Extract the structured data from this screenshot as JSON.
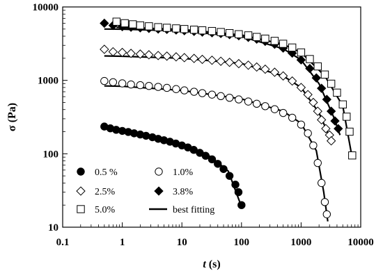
{
  "chart_data": {
    "type": "scatter",
    "xlabel_italic": "t",
    "xlabel_unit": " (s)",
    "ylabel": "σ (Pa)",
    "xscale": "log",
    "yscale": "log",
    "xlim": [
      0.1,
      10000
    ],
    "ylim": [
      10,
      10000
    ],
    "grid": false,
    "legend_position": "bottom-left inside plot",
    "x_ticks": [
      "0.1",
      "1",
      "10",
      "100",
      "1000",
      "10000"
    ],
    "y_ticks": [
      "10",
      "100",
      "1000",
      "10000"
    ],
    "series": [
      {
        "name": "0.5 %",
        "marker": "filled-circle",
        "points": [
          [
            0.5,
            235
          ],
          [
            0.63,
            222
          ],
          [
            0.79,
            212
          ],
          [
            1.0,
            205
          ],
          [
            1.26,
            198
          ],
          [
            1.58,
            190
          ],
          [
            2.0,
            183
          ],
          [
            2.5,
            176
          ],
          [
            3.2,
            168
          ],
          [
            4.0,
            160
          ],
          [
            5.0,
            153
          ],
          [
            6.3,
            146
          ],
          [
            7.9,
            138
          ],
          [
            10,
            130
          ],
          [
            12.6,
            122
          ],
          [
            15.8,
            113
          ],
          [
            20,
            103
          ],
          [
            25,
            94
          ],
          [
            32,
            84
          ],
          [
            40,
            73
          ],
          [
            50,
            62
          ],
          [
            63,
            50
          ],
          [
            79,
            38
          ],
          [
            89,
            30
          ],
          [
            100,
            20
          ]
        ],
        "fit": [
          [
            0.5,
            232
          ],
          [
            1,
            205
          ],
          [
            3,
            172
          ],
          [
            10,
            132
          ],
          [
            30,
            92
          ],
          [
            60,
            58
          ],
          [
            100,
            19
          ]
        ]
      },
      {
        "name": "1.0%",
        "marker": "open-circle",
        "points": [
          [
            0.5,
            980
          ],
          [
            0.7,
            945
          ],
          [
            1.0,
            910
          ],
          [
            1.4,
            880
          ],
          [
            2.0,
            860
          ],
          [
            2.8,
            840
          ],
          [
            4.0,
            815
          ],
          [
            5.6,
            790
          ],
          [
            8,
            760
          ],
          [
            11,
            730
          ],
          [
            16,
            700
          ],
          [
            22,
            670
          ],
          [
            32,
            640
          ],
          [
            45,
            610
          ],
          [
            63,
            580
          ],
          [
            90,
            550
          ],
          [
            130,
            515
          ],
          [
            180,
            480
          ],
          [
            250,
            445
          ],
          [
            360,
            405
          ],
          [
            500,
            360
          ],
          [
            710,
            310
          ],
          [
            1000,
            250
          ],
          [
            1300,
            190
          ],
          [
            1600,
            130
          ],
          [
            1900,
            75
          ],
          [
            2200,
            40
          ],
          [
            2500,
            22
          ],
          [
            2700,
            15
          ]
        ],
        "fit": [
          [
            0.5,
            840
          ],
          [
            1,
            830
          ],
          [
            10,
            730
          ],
          [
            100,
            560
          ],
          [
            500,
            380
          ],
          [
            1000,
            260
          ],
          [
            1800,
            110
          ],
          [
            2400,
            30
          ],
          [
            2800,
            12
          ]
        ]
      },
      {
        "name": "2.5%",
        "marker": "open-diamond",
        "points": [
          [
            0.5,
            2650
          ],
          [
            0.7,
            2450
          ],
          [
            1.0,
            2400
          ],
          [
            1.4,
            2330
          ],
          [
            2.0,
            2280
          ],
          [
            2.8,
            2230
          ],
          [
            4.0,
            2180
          ],
          [
            5.6,
            2140
          ],
          [
            8,
            2090
          ],
          [
            11,
            2040
          ],
          [
            16,
            1990
          ],
          [
            22,
            1930
          ],
          [
            32,
            1880
          ],
          [
            45,
            1820
          ],
          [
            63,
            1760
          ],
          [
            90,
            1690
          ],
          [
            130,
            1610
          ],
          [
            180,
            1520
          ],
          [
            250,
            1420
          ],
          [
            360,
            1290
          ],
          [
            500,
            1150
          ],
          [
            710,
            980
          ],
          [
            1000,
            800
          ],
          [
            1300,
            640
          ],
          [
            1600,
            500
          ],
          [
            1900,
            380
          ],
          [
            2200,
            290
          ],
          [
            2600,
            220
          ],
          [
            3000,
            180
          ],
          [
            3200,
            150
          ]
        ],
        "fit": [
          [
            0.5,
            2150
          ],
          [
            1,
            2130
          ],
          [
            10,
            2000
          ],
          [
            100,
            1700
          ],
          [
            500,
            1150
          ],
          [
            1000,
            800
          ],
          [
            2000,
            360
          ],
          [
            3000,
            170
          ],
          [
            3400,
            140
          ]
        ]
      },
      {
        "name": "3.8%",
        "marker": "filled-diamond",
        "points": [
          [
            0.5,
            6000
          ],
          [
            0.7,
            5600
          ],
          [
            1.0,
            5400
          ],
          [
            1.4,
            5300
          ],
          [
            2.0,
            5200
          ],
          [
            2.8,
            5100
          ],
          [
            4.0,
            5000
          ],
          [
            5.6,
            4950
          ],
          [
            8,
            4850
          ],
          [
            11,
            4750
          ],
          [
            16,
            4650
          ],
          [
            22,
            4550
          ],
          [
            32,
            4450
          ],
          [
            45,
            4350
          ],
          [
            63,
            4200
          ],
          [
            90,
            4050
          ],
          [
            130,
            3850
          ],
          [
            180,
            3650
          ],
          [
            250,
            3400
          ],
          [
            360,
            3100
          ],
          [
            500,
            2750
          ],
          [
            710,
            2350
          ],
          [
            1000,
            1900
          ],
          [
            1400,
            1450
          ],
          [
            1800,
            1080
          ],
          [
            2200,
            780
          ],
          [
            2700,
            550
          ],
          [
            3200,
            380
          ],
          [
            3700,
            280
          ],
          [
            4200,
            220
          ]
        ],
        "fit": [
          [
            0.5,
            5000
          ],
          [
            1,
            4980
          ],
          [
            10,
            4700
          ],
          [
            100,
            3950
          ],
          [
            500,
            2700
          ],
          [
            1000,
            1900
          ],
          [
            2000,
            900
          ],
          [
            3500,
            320
          ],
          [
            4500,
            180
          ]
        ]
      },
      {
        "name": "5.0%",
        "marker": "open-square",
        "points": [
          [
            0.8,
            6300
          ],
          [
            1.1,
            6000
          ],
          [
            1.5,
            5800
          ],
          [
            2.0,
            5600
          ],
          [
            2.8,
            5450
          ],
          [
            4.0,
            5300
          ],
          [
            5.6,
            5200
          ],
          [
            8,
            5100
          ],
          [
            11,
            5000
          ],
          [
            16,
            4900
          ],
          [
            22,
            4800
          ],
          [
            32,
            4700
          ],
          [
            45,
            4550
          ],
          [
            63,
            4400
          ],
          [
            90,
            4250
          ],
          [
            130,
            4100
          ],
          [
            180,
            3900
          ],
          [
            250,
            3700
          ],
          [
            360,
            3450
          ],
          [
            500,
            3150
          ],
          [
            710,
            2800
          ],
          [
            1000,
            2400
          ],
          [
            1400,
            1950
          ],
          [
            1900,
            1550
          ],
          [
            2500,
            1200
          ],
          [
            3200,
            900
          ],
          [
            4000,
            680
          ],
          [
            5000,
            470
          ],
          [
            5800,
            320
          ],
          [
            6500,
            200
          ],
          [
            7200,
            95
          ]
        ],
        "fit": [
          [
            0.8,
            5300
          ],
          [
            1,
            5250
          ],
          [
            10,
            4950
          ],
          [
            100,
            4150
          ],
          [
            500,
            3100
          ],
          [
            1000,
            2400
          ],
          [
            2500,
            1150
          ],
          [
            5000,
            450
          ],
          [
            7000,
            100
          ]
        ]
      }
    ],
    "fit_legend_name": "best fitting"
  }
}
